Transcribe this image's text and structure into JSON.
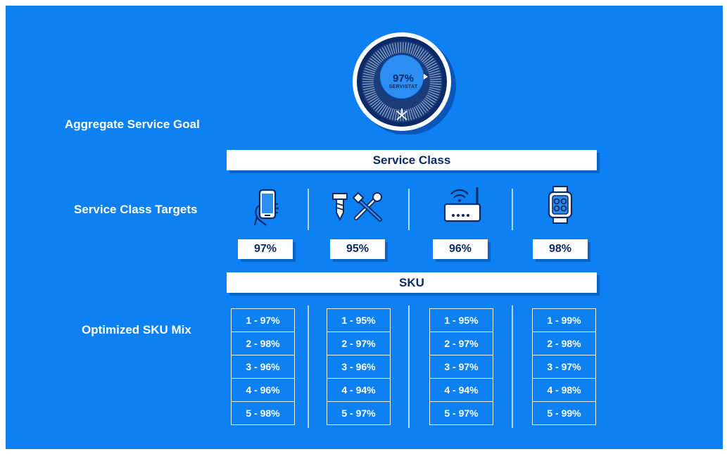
{
  "labels": {
    "aggregate": "Aggregate Service Goal",
    "targets": "Service Class Targets",
    "mix": "Optimized SKU Mix"
  },
  "dial": {
    "value": "97%",
    "caption": "SERVISTAT",
    "logo": "knot-logo"
  },
  "bars": {
    "service_class": "Service Class",
    "sku": "SKU"
  },
  "classes": [
    {
      "icon": "smartphone-hand-icon",
      "target": "97%",
      "skus": [
        "1 - 97%",
        "2 - 98%",
        "3 - 96%",
        "4 - 96%",
        "5 - 98%"
      ]
    },
    {
      "icon": "screw-wrench-icon",
      "target": "95%",
      "skus": [
        "1 - 95%",
        "2 - 97%",
        "3 - 96%",
        "4 - 94%",
        "5 - 97%"
      ]
    },
    {
      "icon": "wifi-router-icon",
      "target": "96%",
      "skus": [
        "1 - 95%",
        "2 - 97%",
        "3 - 97%",
        "4 - 94%",
        "5 - 97%"
      ]
    },
    {
      "icon": "smartwatch-icon",
      "target": "98%",
      "skus": [
        "1 - 99%",
        "2 - 98%",
        "3 - 97%",
        "4 - 98%",
        "5 - 99%"
      ]
    }
  ],
  "colors": {
    "background": "#0d80f2",
    "navy": "#0b2a66",
    "dial_inner": "#2c8ef0"
  }
}
